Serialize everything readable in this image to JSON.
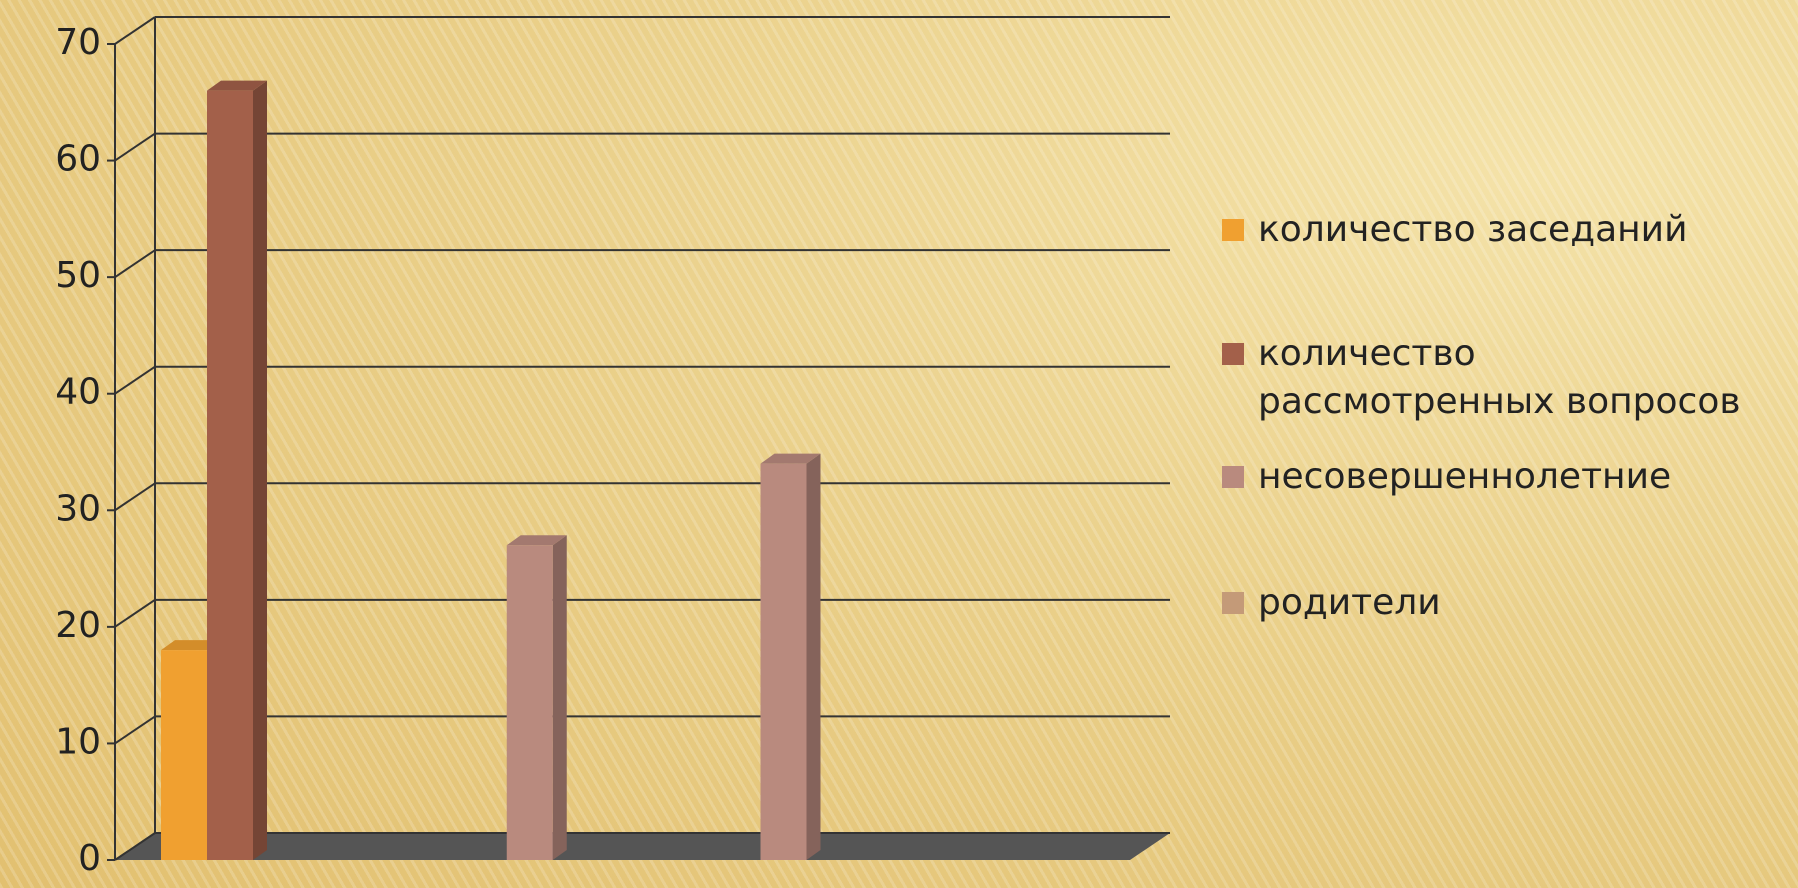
{
  "chart_data": {
    "type": "bar3d",
    "categories": [
      null,
      null,
      null,
      null
    ],
    "series": [
      {
        "name": "количество заседаний",
        "color": "#f0a030",
        "values": [
          18,
          null,
          null,
          null
        ]
      },
      {
        "name": "количество рассмотренных вопросов",
        "color": "#a3604a",
        "values": [
          66,
          null,
          null,
          null
        ]
      },
      {
        "name": "несовершеннолетние",
        "color": "#b98a7e",
        "values": [
          null,
          27,
          34,
          null
        ]
      },
      {
        "name": "родители",
        "color": "#c49a78",
        "values": [
          null,
          null,
          null,
          null
        ]
      }
    ],
    "ylim": [
      0,
      70
    ],
    "yticks": [
      0,
      10,
      20,
      30,
      40,
      50,
      60,
      70
    ],
    "grid": true,
    "legend": "right"
  }
}
